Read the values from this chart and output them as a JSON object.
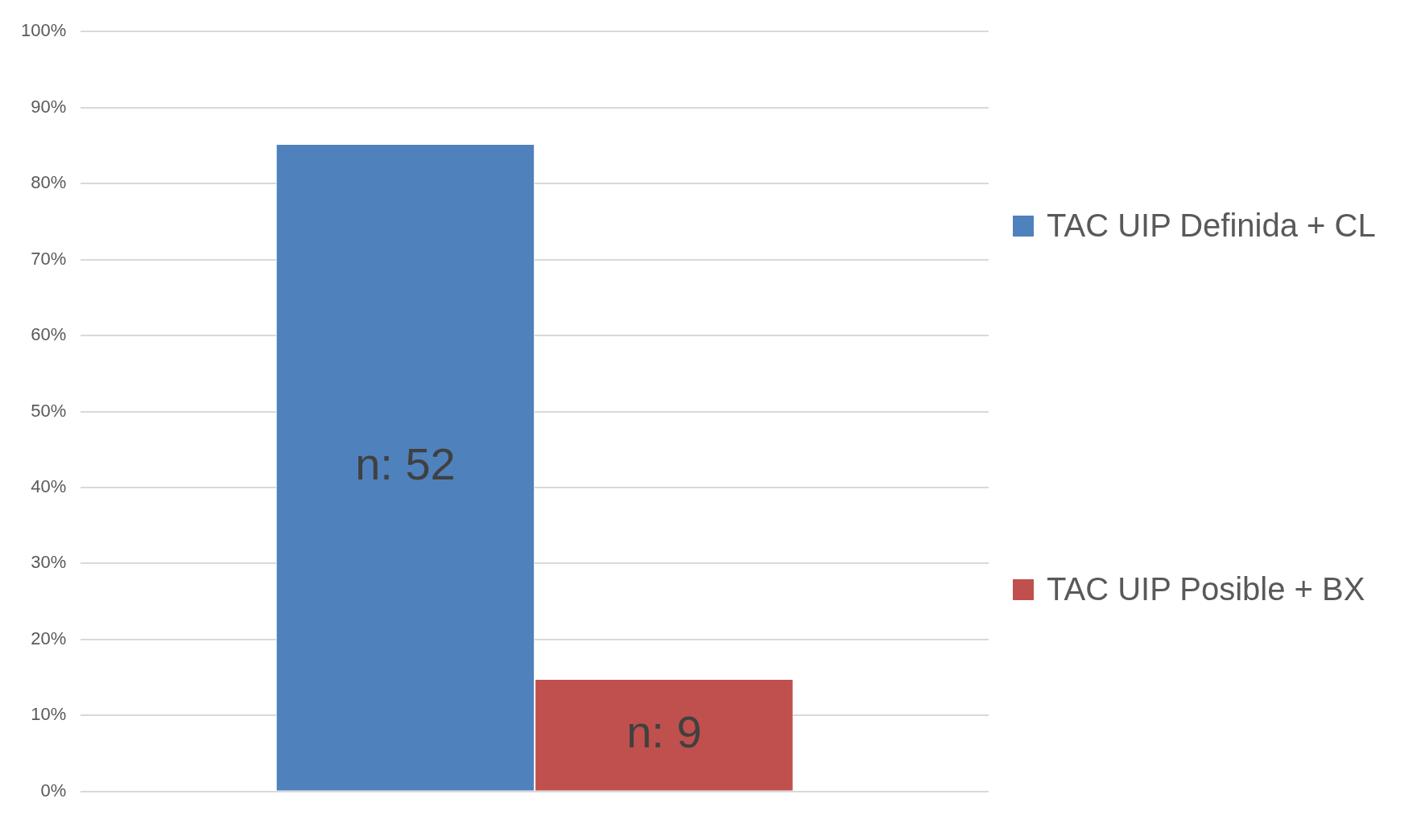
{
  "chart_data": {
    "type": "bar",
    "categories": [
      null
    ],
    "series": [
      {
        "name": "TAC UIP Definida + CL",
        "color": "#4f81bd",
        "values": [
          85.2
        ]
      },
      {
        "name": "TAC UIP Posible + BX",
        "color": "#c0504d",
        "values": [
          14.8
        ]
      }
    ],
    "annotations": [
      "n: 52",
      "n: 9"
    ],
    "ylim": [
      0,
      100
    ],
    "yticks": [
      {
        "value": 0,
        "label": "0%"
      },
      {
        "value": 10,
        "label": "10%"
      },
      {
        "value": 20,
        "label": "20%"
      },
      {
        "value": 30,
        "label": "30%"
      },
      {
        "value": 40,
        "label": "40%"
      },
      {
        "value": 50,
        "label": "50%"
      },
      {
        "value": 60,
        "label": "60%"
      },
      {
        "value": 70,
        "label": "70%"
      },
      {
        "value": 80,
        "label": "80%"
      },
      {
        "value": 90,
        "label": "90%"
      },
      {
        "value": 100,
        "label": "100%"
      }
    ],
    "grid": "y",
    "legend": "right",
    "tick_labels": "y"
  }
}
